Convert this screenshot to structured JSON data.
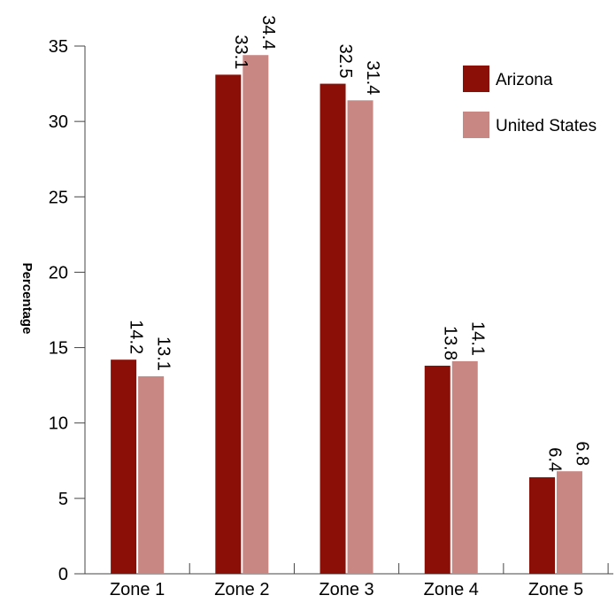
{
  "chart_data": {
    "type": "bar",
    "title": "",
    "xlabel": "",
    "ylabel": "Percentage",
    "categories": [
      "Zone 1",
      "Zone 2",
      "Zone 3",
      "Zone 4",
      "Zone 5"
    ],
    "series": [
      {
        "name": "Arizona",
        "color": "#8b0f06",
        "values": [
          14.2,
          33.1,
          32.5,
          13.8,
          6.4
        ]
      },
      {
        "name": "United States",
        "color": "#c98783",
        "values": [
          13.1,
          34.4,
          31.4,
          14.1,
          6.8
        ]
      }
    ],
    "ylim": [
      0,
      35
    ],
    "yticks": [
      "0",
      "5",
      "10",
      "15",
      "20",
      "25",
      "30",
      "35"
    ],
    "grid": false,
    "legend_position": "top-right",
    "value_labels": "rotated above bars"
  }
}
